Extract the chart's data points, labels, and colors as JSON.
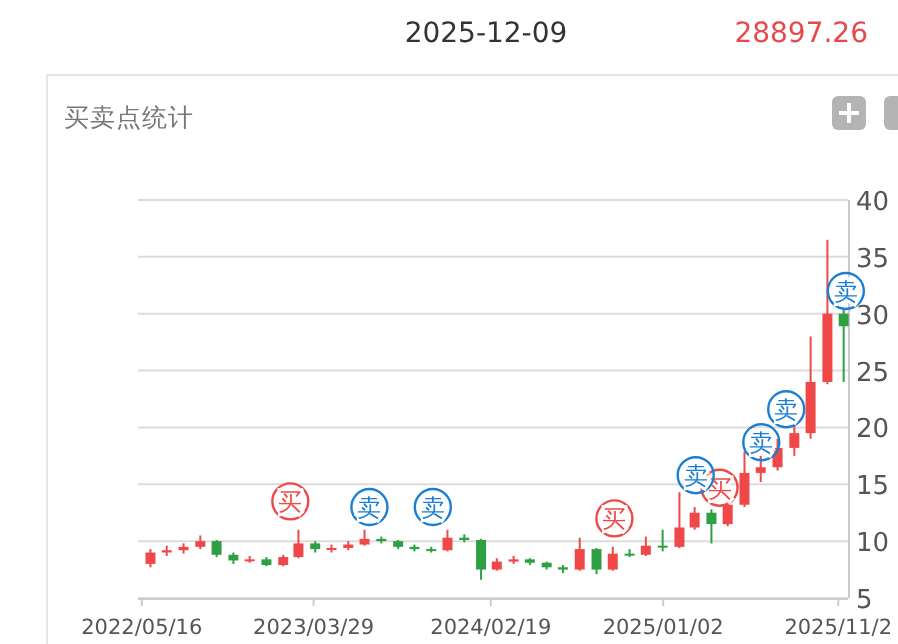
{
  "chart_data": {
    "type": "candlestick",
    "title": "买卖点统计",
    "x": [
      "2022-06-01",
      "2022-07-01",
      "2022-08-01",
      "2022-09-01",
      "2022-10-01",
      "2022-11-01",
      "2022-12-01",
      "2023-01-01",
      "2023-02-01",
      "2023-03-01",
      "2023-04-01",
      "2023-05-01",
      "2023-06-01",
      "2023-07-01",
      "2023-08-01",
      "2023-09-01",
      "2023-10-01",
      "2023-11-01",
      "2023-12-01",
      "2024-01-01",
      "2024-02-01",
      "2024-03-01",
      "2024-04-01",
      "2024-05-01",
      "2024-06-01",
      "2024-07-01",
      "2024-08-01",
      "2024-09-01",
      "2024-10-01",
      "2024-11-01",
      "2024-12-01",
      "2025-01-01",
      "2025-02-01",
      "2025-03-01",
      "2025-04-01",
      "2025-05-01",
      "2025-06-01",
      "2025-07-01",
      "2025-08-01",
      "2025-09-01",
      "2025-10-01",
      "2025-11-01",
      "2025-12-01"
    ],
    "ohlc": [
      [
        8.0,
        9.3,
        7.7,
        9.0
      ],
      [
        9.0,
        9.6,
        8.7,
        9.2
      ],
      [
        9.2,
        9.8,
        8.9,
        9.5
      ],
      [
        9.5,
        10.5,
        9.3,
        10.0
      ],
      [
        10.0,
        10.1,
        8.6,
        8.8
      ],
      [
        8.8,
        9.0,
        8.0,
        8.3
      ],
      [
        8.3,
        8.7,
        8.1,
        8.4
      ],
      [
        8.4,
        8.6,
        7.8,
        7.9
      ],
      [
        7.9,
        8.8,
        7.8,
        8.6
      ],
      [
        8.6,
        11.0,
        8.5,
        9.8
      ],
      [
        9.8,
        10.0,
        9.0,
        9.3
      ],
      [
        9.3,
        9.7,
        9.0,
        9.4
      ],
      [
        9.4,
        10.0,
        9.2,
        9.7
      ],
      [
        9.7,
        11.0,
        9.6,
        10.2
      ],
      [
        10.2,
        10.4,
        9.8,
        10.0
      ],
      [
        10.0,
        10.1,
        9.3,
        9.5
      ],
      [
        9.5,
        9.7,
        9.1,
        9.3
      ],
      [
        9.3,
        9.5,
        9.0,
        9.2
      ],
      [
        9.2,
        11.0,
        9.1,
        10.3
      ],
      [
        10.3,
        10.6,
        9.9,
        10.1
      ],
      [
        10.1,
        10.2,
        6.6,
        7.5
      ],
      [
        7.5,
        8.5,
        7.4,
        8.2
      ],
      [
        8.2,
        8.7,
        8.0,
        8.4
      ],
      [
        8.4,
        8.5,
        7.9,
        8.1
      ],
      [
        8.1,
        8.2,
        7.5,
        7.7
      ],
      [
        7.7,
        7.9,
        7.2,
        7.5
      ],
      [
        7.5,
        10.3,
        7.4,
        9.3
      ],
      [
        9.3,
        9.4,
        7.1,
        7.5
      ],
      [
        7.5,
        9.5,
        7.4,
        8.9
      ],
      [
        8.9,
        9.3,
        8.6,
        8.8
      ],
      [
        8.8,
        10.4,
        8.7,
        9.6
      ],
      [
        9.6,
        11.0,
        9.1,
        9.5
      ],
      [
        9.5,
        14.3,
        9.4,
        11.2
      ],
      [
        11.2,
        13.0,
        11.0,
        12.5
      ],
      [
        12.5,
        12.8,
        9.8,
        11.5
      ],
      [
        11.5,
        13.6,
        11.3,
        13.2
      ],
      [
        13.2,
        17.9,
        13.0,
        16.0
      ],
      [
        16.0,
        17.5,
        15.2,
        16.5
      ],
      [
        16.5,
        19.0,
        16.2,
        18.2
      ],
      [
        18.2,
        20.5,
        17.5,
        19.5
      ],
      [
        19.5,
        28.0,
        19.0,
        24.0
      ],
      [
        24.0,
        36.5,
        23.8,
        30.0
      ],
      [
        30.0,
        30.5,
        24.0,
        28.9
      ]
    ],
    "xlim": [
      "2022-05-09",
      "2025-12-09"
    ],
    "xticks": [
      {
        "value": "2022-05-16",
        "label": "2022/05/16"
      },
      {
        "value": "2023-03-29",
        "label": "2023/03/29"
      },
      {
        "value": "2024-02-19",
        "label": "2024/02/19"
      },
      {
        "value": "2025-01-02",
        "label": "2025/01/02"
      },
      {
        "value": "2025-11-21",
        "label": "2025/11/2"
      }
    ],
    "ylim": [
      5,
      40
    ],
    "yticks": [
      5,
      10,
      15,
      20,
      25,
      30,
      35,
      40
    ],
    "grid": "y",
    "series": [
      {
        "type": "scatter",
        "color": "#f04848",
        "x": [
          "2023-02-14",
          "2024-10-04",
          "2025-04-16"
        ],
        "values": [
          13.5,
          12.0,
          14.7
        ]
      },
      {
        "type": "scatter",
        "color": "#1a7fd4",
        "x": [
          "2023-07-10",
          "2023-11-04",
          "2025-03-03",
          "2025-07-02",
          "2025-08-17",
          "2025-12-05"
        ],
        "values": [
          13.0,
          13.0,
          15.8,
          18.7,
          21.6,
          32.0
        ]
      }
    ],
    "annotations": [
      "2025-12-09",
      "28897.26",
      {
        "text": "买",
        "x": "2023-02-14",
        "y": 13.5
      },
      {
        "text": "买",
        "x": "2024-10-04",
        "y": 12.0
      },
      {
        "text": "买",
        "x": "2025-04-16",
        "y": 14.7
      },
      {
        "text": "卖",
        "x": "2023-07-10",
        "y": 13.0
      },
      {
        "text": "卖",
        "x": "2023-11-04",
        "y": 13.0
      },
      {
        "text": "卖",
        "x": "2025-03-03",
        "y": 15.8
      },
      {
        "text": "卖",
        "x": "2025-07-02",
        "y": 18.7
      },
      {
        "text": "卖",
        "x": "2025-08-17",
        "y": 21.6
      },
      {
        "text": "卖",
        "x": "2025-12-05",
        "y": 32.0
      }
    ]
  }
}
